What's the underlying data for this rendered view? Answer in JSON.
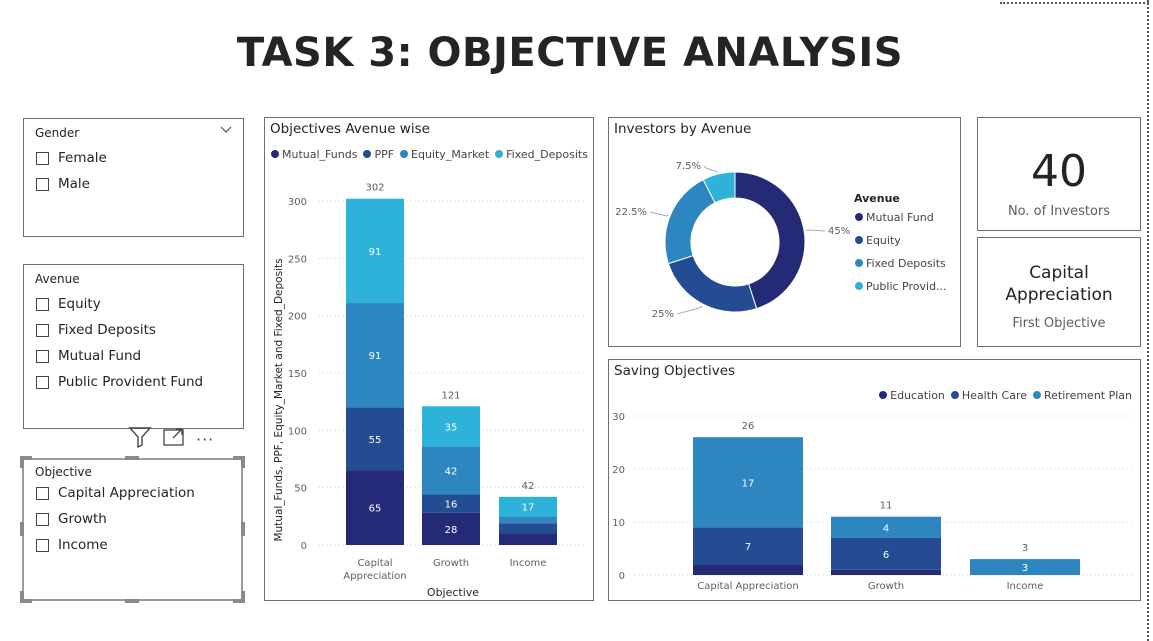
{
  "page": {
    "title": "TASK 3: OBJECTIVE ANALYSIS"
  },
  "slicers": {
    "gender": {
      "title": "Gender",
      "items": [
        "Female",
        "Male"
      ]
    },
    "avenue": {
      "title": "Avenue",
      "items": [
        "Equity",
        "Fixed Deposits",
        "Mutual Fund",
        "Public Provident Fund"
      ]
    },
    "objective": {
      "title": "Objective",
      "items": [
        "Capital Appreciation",
        "Growth",
        "Income"
      ]
    }
  },
  "toolbar": {
    "icons": [
      "filter-icon",
      "focus-mode-icon",
      "more-options-icon"
    ],
    "more_label": "···"
  },
  "kpis": {
    "investors": {
      "value": "40",
      "label": "No. of Investors"
    },
    "objective": {
      "value_line1": "Capital",
      "value_line2": "Appreciation",
      "label": "First Objective"
    }
  },
  "colors": {
    "mutual": "#242A75",
    "ppf": "#244C93",
    "equity": "#2E86C1",
    "fd": "#2DB2D9",
    "education": "#242A75",
    "health": "#244C93",
    "retirement": "#2E86C1"
  },
  "chart_data": [
    {
      "type": "bar",
      "title": "Objectives Avenue wise",
      "stacked": true,
      "categories": [
        "Capital Appreciation",
        "Growth",
        "Income"
      ],
      "category_labels": [
        [
          "Capital",
          "Appreciation"
        ],
        [
          "Growth"
        ],
        [
          "Income"
        ]
      ],
      "series": [
        {
          "name": "Mutual_Funds",
          "values": [
            65,
            28,
            10
          ],
          "labels": [
            "65",
            "28",
            ""
          ]
        },
        {
          "name": "PPF",
          "values": [
            55,
            16,
            9
          ],
          "labels": [
            "55",
            "16",
            ""
          ]
        },
        {
          "name": "Equity_Market",
          "values": [
            91,
            42,
            6
          ],
          "labels": [
            "91",
            "42",
            ""
          ]
        },
        {
          "name": "Fixed_Deposits",
          "values": [
            91,
            35,
            17
          ],
          "labels": [
            "91",
            "35",
            "17"
          ]
        }
      ],
      "totals": [
        "302",
        "121",
        "42"
      ],
      "xlabel": "Objective",
      "ylabel": "Mutual_Funds, PPF, Equity_Market and Fixed_Deposits",
      "ylim": [
        0,
        300
      ],
      "yticks": [
        0,
        50,
        100,
        150,
        200,
        250,
        300
      ],
      "legend": "top-left",
      "grid": true
    },
    {
      "type": "pie",
      "donut": true,
      "title": "Investors by Avenue",
      "legend_title": "Avenue",
      "slices": [
        {
          "name": "Mutual Fund",
          "value": 45,
          "label": "45%"
        },
        {
          "name": "Equity",
          "value": 25,
          "label": "25%"
        },
        {
          "name": "Fixed Deposits",
          "value": 22.5,
          "label": "22.5%"
        },
        {
          "name": "Public Provid...",
          "value": 7.5,
          "label": "7.5%"
        }
      ],
      "legend": "right"
    },
    {
      "type": "bar",
      "title": "Saving Objectives",
      "stacked": true,
      "categories": [
        "Capital Appreciation",
        "Growth",
        "Income"
      ],
      "series": [
        {
          "name": "Education",
          "values": [
            2,
            1,
            0
          ],
          "labels": [
            "",
            "",
            ""
          ]
        },
        {
          "name": "Health Care",
          "values": [
            7,
            6,
            0
          ],
          "labels": [
            "7",
            "6",
            ""
          ]
        },
        {
          "name": "Retirement Plan",
          "values": [
            17,
            4,
            3
          ],
          "labels": [
            "17",
            "4",
            "3"
          ]
        }
      ],
      "totals": [
        "26",
        "11",
        "3"
      ],
      "ylim": [
        0,
        30
      ],
      "yticks": [
        0,
        10,
        20,
        30
      ],
      "legend": "top-right",
      "grid": true
    }
  ]
}
